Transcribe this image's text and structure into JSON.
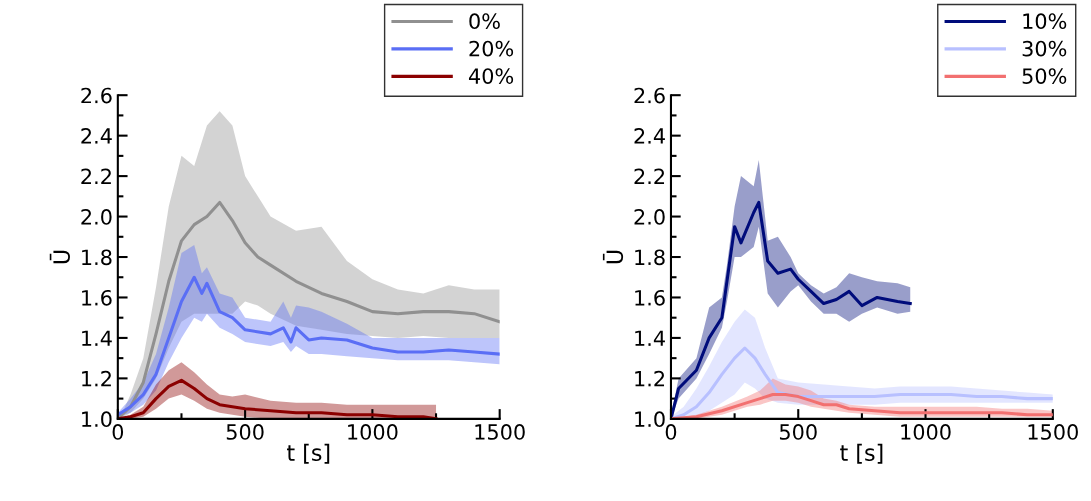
{
  "chart_data": [
    {
      "type": "line",
      "xlabel": "t [s]",
      "ylabel": "Ū",
      "xlim": [
        0,
        1500
      ],
      "ylim": [
        1.0,
        2.6
      ],
      "xticks": [
        0,
        500,
        1000,
        1500
      ],
      "yticks": [
        {
          "value": 1.0,
          "label": "1.0"
        },
        {
          "value": 1.2,
          "label": "1.2"
        },
        {
          "value": 1.4,
          "label": "1.4"
        },
        {
          "value": 1.6,
          "label": "1.6"
        },
        {
          "value": 1.8,
          "label": "1.8"
        },
        {
          "value": 2.0,
          "label": "2.0"
        },
        {
          "value": 2.2,
          "label": "2.2"
        },
        {
          "value": 2.4,
          "label": "2.4"
        },
        {
          "value": 2.6,
          "label": "2.6"
        }
      ],
      "grid": false,
      "legend": "top right",
      "marker": "none",
      "line_style": "solid",
      "series": [
        {
          "name": "0%",
          "color": "#909090",
          "x": [
            0,
            25,
            50,
            100,
            150,
            200,
            250,
            300,
            350,
            400,
            450,
            500,
            550,
            600,
            700,
            800,
            900,
            1000,
            1100,
            1200,
            1300,
            1400,
            1500
          ],
          "values": [
            1.0,
            1.03,
            1.06,
            1.18,
            1.42,
            1.68,
            1.88,
            1.96,
            2.0,
            2.07,
            1.98,
            1.87,
            1.8,
            1.76,
            1.68,
            1.62,
            1.58,
            1.53,
            1.52,
            1.53,
            1.53,
            1.52,
            1.48
          ],
          "upper": [
            1.01,
            1.05,
            1.12,
            1.3,
            1.65,
            2.05,
            2.3,
            2.25,
            2.45,
            2.52,
            2.45,
            2.2,
            2.1,
            2.0,
            1.93,
            1.95,
            1.78,
            1.69,
            1.64,
            1.62,
            1.66,
            1.64,
            1.64
          ],
          "lower": [
            1.0,
            1.01,
            1.03,
            1.1,
            1.2,
            1.35,
            1.48,
            1.52,
            1.52,
            1.52,
            1.52,
            1.58,
            1.56,
            1.52,
            1.46,
            1.44,
            1.42,
            1.41,
            1.4,
            1.41,
            1.4,
            1.4,
            1.4
          ]
        },
        {
          "name": "20%",
          "color": "#5a6ef5",
          "x": [
            0,
            50,
            100,
            150,
            200,
            250,
            300,
            330,
            350,
            400,
            450,
            500,
            600,
            650,
            680,
            700,
            750,
            800,
            900,
            1000,
            1100,
            1200,
            1300,
            1400,
            1500
          ],
          "values": [
            1.02,
            1.06,
            1.12,
            1.22,
            1.4,
            1.58,
            1.7,
            1.62,
            1.67,
            1.53,
            1.5,
            1.44,
            1.42,
            1.45,
            1.38,
            1.45,
            1.39,
            1.4,
            1.39,
            1.35,
            1.33,
            1.33,
            1.34,
            1.33,
            1.32
          ],
          "upper": [
            1.03,
            1.1,
            1.18,
            1.32,
            1.55,
            1.82,
            1.86,
            1.72,
            1.75,
            1.62,
            1.6,
            1.5,
            1.48,
            1.58,
            1.5,
            1.56,
            1.55,
            1.53,
            1.47,
            1.4,
            1.4,
            1.4,
            1.4,
            1.4,
            1.4
          ],
          "lower": [
            1.01,
            1.03,
            1.07,
            1.14,
            1.28,
            1.4,
            1.5,
            1.48,
            1.52,
            1.45,
            1.42,
            1.38,
            1.36,
            1.38,
            1.33,
            1.36,
            1.32,
            1.32,
            1.31,
            1.3,
            1.29,
            1.29,
            1.29,
            1.28,
            1.27
          ]
        },
        {
          "name": "40%",
          "color": "#8b0000",
          "x": [
            0,
            50,
            100,
            150,
            200,
            250,
            300,
            350,
            400,
            450,
            500,
            600,
            700,
            800,
            900,
            1000,
            1100,
            1200,
            1250
          ],
          "values": [
            1.0,
            1.01,
            1.03,
            1.1,
            1.16,
            1.19,
            1.15,
            1.1,
            1.07,
            1.06,
            1.05,
            1.04,
            1.03,
            1.03,
            1.02,
            1.02,
            1.01,
            1.01,
            1.0
          ],
          "upper": [
            1.0,
            1.02,
            1.06,
            1.17,
            1.24,
            1.28,
            1.23,
            1.17,
            1.12,
            1.11,
            1.12,
            1.09,
            1.08,
            1.08,
            1.07,
            1.07,
            1.07,
            1.07,
            1.07
          ],
          "lower": [
            1.0,
            1.0,
            1.01,
            1.05,
            1.1,
            1.12,
            1.09,
            1.05,
            1.03,
            1.02,
            1.01,
            1.0,
            1.0,
            1.0,
            1.0,
            1.0,
            1.0,
            1.0,
            1.0
          ]
        }
      ]
    },
    {
      "type": "line",
      "xlabel": "t [s]",
      "ylabel": "Ū",
      "xlim": [
        0,
        1500
      ],
      "ylim": [
        1.0,
        2.6
      ],
      "xticks": [
        0,
        500,
        1000,
        1500
      ],
      "yticks": [
        {
          "value": 1.0,
          "label": "1.0"
        },
        {
          "value": 1.2,
          "label": "1.2"
        },
        {
          "value": 1.4,
          "label": "1.4"
        },
        {
          "value": 1.6,
          "label": "1.6"
        },
        {
          "value": 1.8,
          "label": "1.8"
        },
        {
          "value": 2.0,
          "label": "2.0"
        },
        {
          "value": 2.2,
          "label": "2.2"
        },
        {
          "value": 2.4,
          "label": "2.4"
        },
        {
          "value": 2.6,
          "label": "2.6"
        }
      ],
      "grid": false,
      "legend": "top right",
      "marker": "none",
      "line_style": "solid",
      "series": [
        {
          "name": "10%",
          "color": "#000c7b",
          "x": [
            0,
            30,
            100,
            150,
            200,
            220,
            250,
            275,
            325,
            345,
            380,
            420,
            470,
            500,
            550,
            600,
            650,
            700,
            750,
            810,
            890,
            940
          ],
          "values": [
            1.0,
            1.15,
            1.24,
            1.4,
            1.5,
            1.68,
            1.95,
            1.87,
            2.02,
            2.07,
            1.78,
            1.72,
            1.74,
            1.69,
            1.63,
            1.57,
            1.59,
            1.63,
            1.56,
            1.6,
            1.58,
            1.57
          ],
          "upper": [
            1.02,
            1.2,
            1.3,
            1.55,
            1.6,
            1.76,
            2.05,
            2.2,
            2.15,
            2.28,
            1.88,
            1.9,
            1.8,
            1.72,
            1.66,
            1.62,
            1.65,
            1.72,
            1.7,
            1.68,
            1.67,
            1.65
          ],
          "lower": [
            1.0,
            1.1,
            1.2,
            1.32,
            1.45,
            1.58,
            1.8,
            1.8,
            1.85,
            1.95,
            1.62,
            1.55,
            1.63,
            1.66,
            1.58,
            1.52,
            1.52,
            1.48,
            1.52,
            1.55,
            1.52,
            1.53
          ]
        },
        {
          "name": "30%",
          "color": "#b8c0ff",
          "x": [
            0,
            50,
            100,
            150,
            200,
            250,
            290,
            330,
            370,
            420,
            500,
            600,
            700,
            800,
            900,
            1000,
            1100,
            1200,
            1300,
            1400,
            1500
          ],
          "values": [
            1.0,
            1.02,
            1.06,
            1.13,
            1.22,
            1.3,
            1.35,
            1.3,
            1.22,
            1.13,
            1.11,
            1.11,
            1.11,
            1.11,
            1.12,
            1.12,
            1.12,
            1.11,
            1.11,
            1.1,
            1.1
          ],
          "upper": [
            1.01,
            1.06,
            1.15,
            1.26,
            1.38,
            1.48,
            1.54,
            1.5,
            1.35,
            1.2,
            1.18,
            1.17,
            1.16,
            1.15,
            1.16,
            1.16,
            1.16,
            1.15,
            1.14,
            1.13,
            1.12
          ],
          "lower": [
            1.0,
            1.0,
            1.01,
            1.04,
            1.08,
            1.12,
            1.18,
            1.15,
            1.1,
            1.08,
            1.07,
            1.07,
            1.07,
            1.07,
            1.08,
            1.08,
            1.08,
            1.08,
            1.08,
            1.08,
            1.08
          ]
        },
        {
          "name": "50%",
          "color": "#f27070",
          "x": [
            0,
            100,
            200,
            300,
            350,
            400,
            450,
            500,
            550,
            600,
            650,
            700,
            800,
            900,
            1000,
            1100,
            1200,
            1300,
            1400,
            1500
          ],
          "values": [
            1.0,
            1.01,
            1.04,
            1.08,
            1.1,
            1.12,
            1.12,
            1.11,
            1.09,
            1.07,
            1.07,
            1.05,
            1.04,
            1.03,
            1.03,
            1.03,
            1.03,
            1.03,
            1.02,
            1.02
          ],
          "upper": [
            1.0,
            1.02,
            1.06,
            1.11,
            1.14,
            1.2,
            1.17,
            1.16,
            1.14,
            1.1,
            1.09,
            1.07,
            1.06,
            1.06,
            1.06,
            1.06,
            1.06,
            1.05,
            1.05,
            1.04
          ],
          "lower": [
            1.0,
            1.0,
            1.02,
            1.06,
            1.07,
            1.09,
            1.09,
            1.08,
            1.06,
            1.05,
            1.04,
            1.03,
            1.02,
            1.01,
            1.01,
            1.01,
            1.01,
            1.01,
            1.01,
            1.01
          ]
        }
      ]
    }
  ]
}
